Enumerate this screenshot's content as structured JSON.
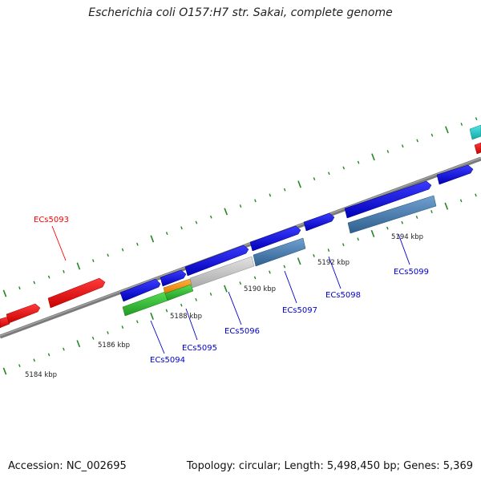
{
  "title": "Escherichia coli O157:H7 str. Sakai, complete genome",
  "footer": {
    "accession": "Accession: NC_002695",
    "summary": "Topology: circular; Length: 5,498,450 bp; Genes: 5,369"
  },
  "ticks": [
    "5184 kbp",
    "5186 kbp",
    "5188 kbp",
    "5190 kbp",
    "5192 kbp",
    "5194 kbp"
  ],
  "genes": [
    {
      "name": "ECs5093",
      "color": "#ff0000"
    },
    {
      "name": "ECs5094",
      "color": "#0000cc"
    },
    {
      "name": "ECs5095",
      "color": "#0000cc"
    },
    {
      "name": "ECs5096",
      "color": "#0000cc"
    },
    {
      "name": "ECs5097",
      "color": "#0000cc"
    },
    {
      "name": "ECs5098",
      "color": "#0000cc"
    },
    {
      "name": "ECs5099",
      "color": "#0000cc"
    }
  ],
  "colors": {
    "backbone": "#808080",
    "tick": "#228822",
    "forward_cds": "#0000ee",
    "reverse_cds": "#ff0000",
    "rna": "#4a80b0",
    "highlight_green": "#33bb33",
    "highlight_orange": "#ff9900",
    "grey_feature": "#c8c8c8",
    "cyan_feature": "#22cccc"
  }
}
